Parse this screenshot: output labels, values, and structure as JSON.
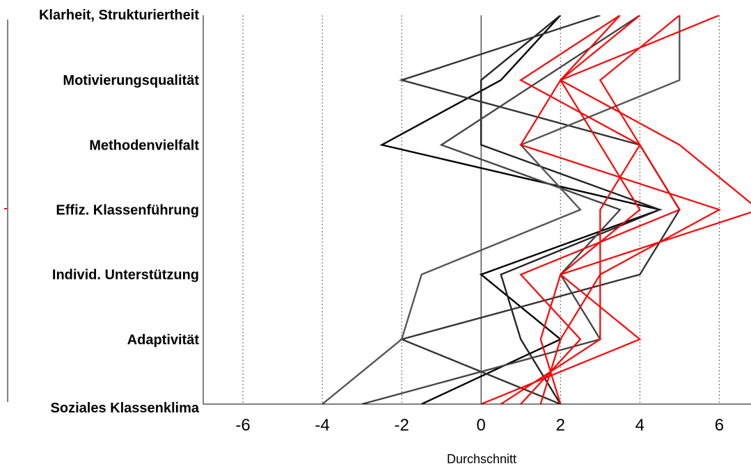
{
  "chart_data": {
    "type": "line",
    "orientation": "horizontal-profile",
    "categories": [
      "Klarheit, Strukturiertheit",
      "Motivierungsqualität",
      "Methodenvielfalt",
      "Effiz. Klassenführung",
      "Individ. Unterstützung",
      "Adaptivität",
      "Soziales Klassenklima"
    ],
    "xlabel": "Durchschnitt",
    "xlim": [
      -7,
      6.8
    ],
    "xticks": [
      -6,
      -4,
      -2,
      0,
      2,
      4,
      6
    ],
    "grid": "vertical dotted",
    "series": [
      {
        "color": "#000000",
        "values": [
          2,
          0.5,
          -2.5,
          4.5,
          0,
          2,
          -1.5
        ]
      },
      {
        "color": "#222222",
        "values": [
          2,
          0,
          0,
          4.5,
          0.5,
          1,
          2
        ]
      },
      {
        "color": "#333333",
        "values": [
          3,
          -2,
          4,
          5,
          4,
          -2,
          2
        ]
      },
      {
        "color": "#444444",
        "values": [
          4,
          1.5,
          -1,
          3.5,
          2,
          3,
          -3
        ]
      },
      {
        "color": "#555555",
        "values": [
          5,
          5,
          1,
          2.5,
          -1.5,
          -2,
          -4
        ]
      },
      {
        "color": "#ff0000",
        "values": [
          3.5,
          1,
          4,
          5,
          1,
          2.5,
          1
        ]
      },
      {
        "color": "#ff0000",
        "values": [
          4,
          2,
          3,
          4,
          2,
          4,
          0
        ]
      },
      {
        "color": "#ff0000",
        "values": [
          5,
          3,
          4,
          3,
          3,
          2,
          1.5
        ]
      },
      {
        "color": "#ff0000",
        "values": [
          6,
          2,
          1,
          6,
          3,
          3,
          0.5
        ]
      },
      {
        "color": "#ff0000",
        "values": [
          3.5,
          2,
          5,
          7,
          2,
          1.5,
          2
        ]
      }
    ]
  }
}
